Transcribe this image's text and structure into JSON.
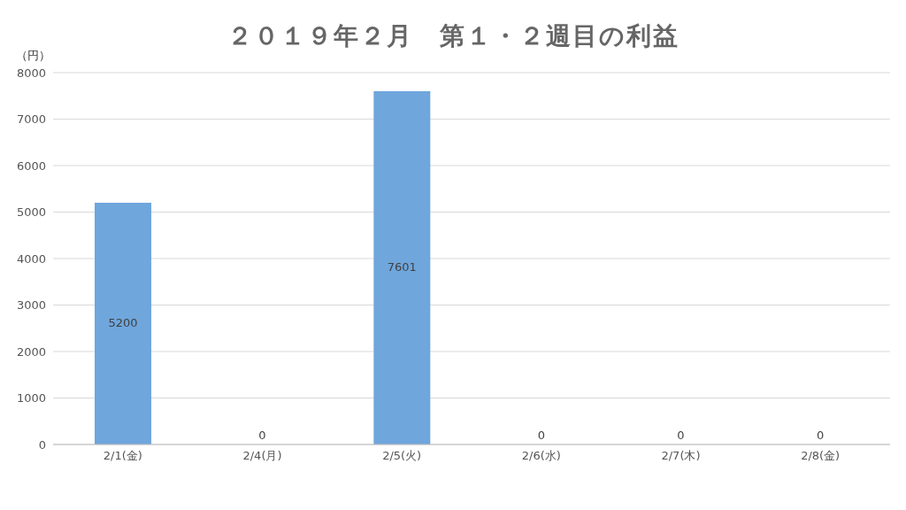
{
  "chart_data": {
    "type": "bar",
    "title": "２０１９年２月　第１・２週目の利益",
    "ylabel": "（円）",
    "categories": [
      "2/1(金)",
      "2/4(月)",
      "2/5(火)",
      "2/6(水)",
      "2/7(木)",
      "2/8(金)"
    ],
    "values": [
      5200,
      0,
      7601,
      0,
      0,
      0
    ],
    "color": "#6fa6dc",
    "ylim": [
      0,
      8000
    ],
    "yticks": [
      0,
      1000,
      2000,
      3000,
      4000,
      5000,
      6000,
      7000,
      8000
    ],
    "grid": "y",
    "data_labels": true,
    "legend": false
  }
}
